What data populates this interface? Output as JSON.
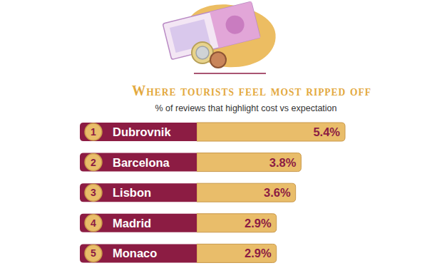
{
  "chart_data": {
    "type": "bar",
    "orientation": "horizontal",
    "title": "Where tourists feel most ripped off",
    "subtitle": "% of reviews that highlight cost vs expectation",
    "categories": [
      "Dubrovnik",
      "Barcelona",
      "Lisbon",
      "Madrid",
      "Monaco"
    ],
    "ranks": [
      1,
      2,
      3,
      4,
      5
    ],
    "values": [
      5.4,
      3.8,
      3.6,
      2.9,
      2.9
    ],
    "value_labels": [
      "5.4%",
      "3.8%",
      "3.6%",
      "2.9%",
      "2.9%"
    ],
    "color": "#e9bd6a",
    "xlim": [
      0,
      5.4
    ],
    "data_labels": true,
    "tick_labels": false,
    "grid": false
  }
}
